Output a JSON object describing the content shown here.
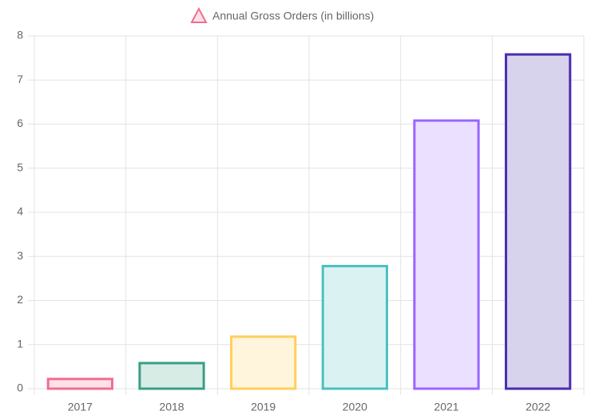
{
  "chart_data": {
    "type": "bar",
    "categories": [
      "2017",
      "2018",
      "2019",
      "2020",
      "2021",
      "2022"
    ],
    "series": [
      {
        "name": "Annual Gross Orders (in billions)",
        "values": [
          0.22,
          0.58,
          1.18,
          2.78,
          6.08,
          7.58
        ],
        "colors": [
          "#f26d8d",
          "#3a9e84",
          "#ffcf5c",
          "#4bc0c0",
          "#9966ff",
          "#4b2db0"
        ],
        "fill_colors": [
          "#fde3e9",
          "#d8ece6",
          "#fff4dc",
          "#dbf2f2",
          "#ebe0ff",
          "#d8d3ec"
        ]
      }
    ],
    "ylim": [
      0,
      8
    ],
    "yticks": [
      0,
      1,
      2,
      3,
      4,
      5,
      6,
      7,
      8
    ],
    "grid": true
  }
}
